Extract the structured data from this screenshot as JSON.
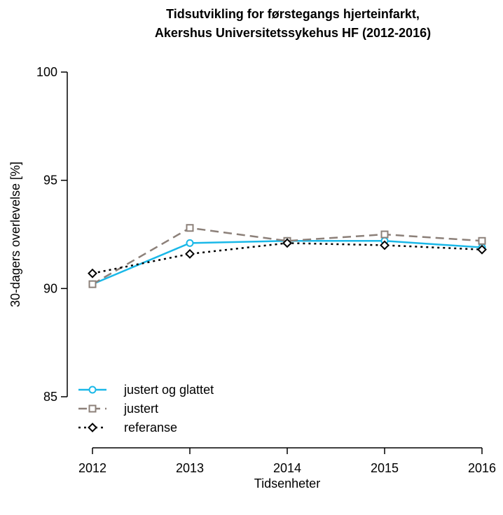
{
  "chart_data": {
    "type": "line",
    "title": [
      "Tidsutvikling for førstegangs hjerteinfarkt,",
      "Akershus Universitetssykehus HF (2012-2016)"
    ],
    "x_label": "Tidsenheter",
    "y_label": "30-dagers overlevelse [%]",
    "x": [
      2012,
      2013,
      2014,
      2015,
      2016
    ],
    "xlim": [
      2012,
      2016
    ],
    "xticks": [
      2012,
      2013,
      2014,
      2015,
      2016
    ],
    "ylim": [
      85,
      100
    ],
    "yticks": [
      85,
      90,
      95,
      100
    ],
    "legend": "bottom-left",
    "grid": false,
    "series": [
      {
        "name": "justert og glattet",
        "color": "#1ab8e8",
        "marker": "circle",
        "dash": "solid",
        "values": [
          90.2,
          92.1,
          92.2,
          92.2,
          91.9
        ]
      },
      {
        "name": "justert",
        "color": "#8c8079",
        "marker": "square",
        "dash": "dashed",
        "values": [
          90.2,
          92.8,
          92.2,
          92.5,
          92.2
        ]
      },
      {
        "name": "referanse",
        "color": "#000000",
        "marker": "diamond",
        "dash": "dotted",
        "values": [
          90.7,
          91.6,
          92.1,
          92.0,
          91.8
        ]
      }
    ]
  }
}
